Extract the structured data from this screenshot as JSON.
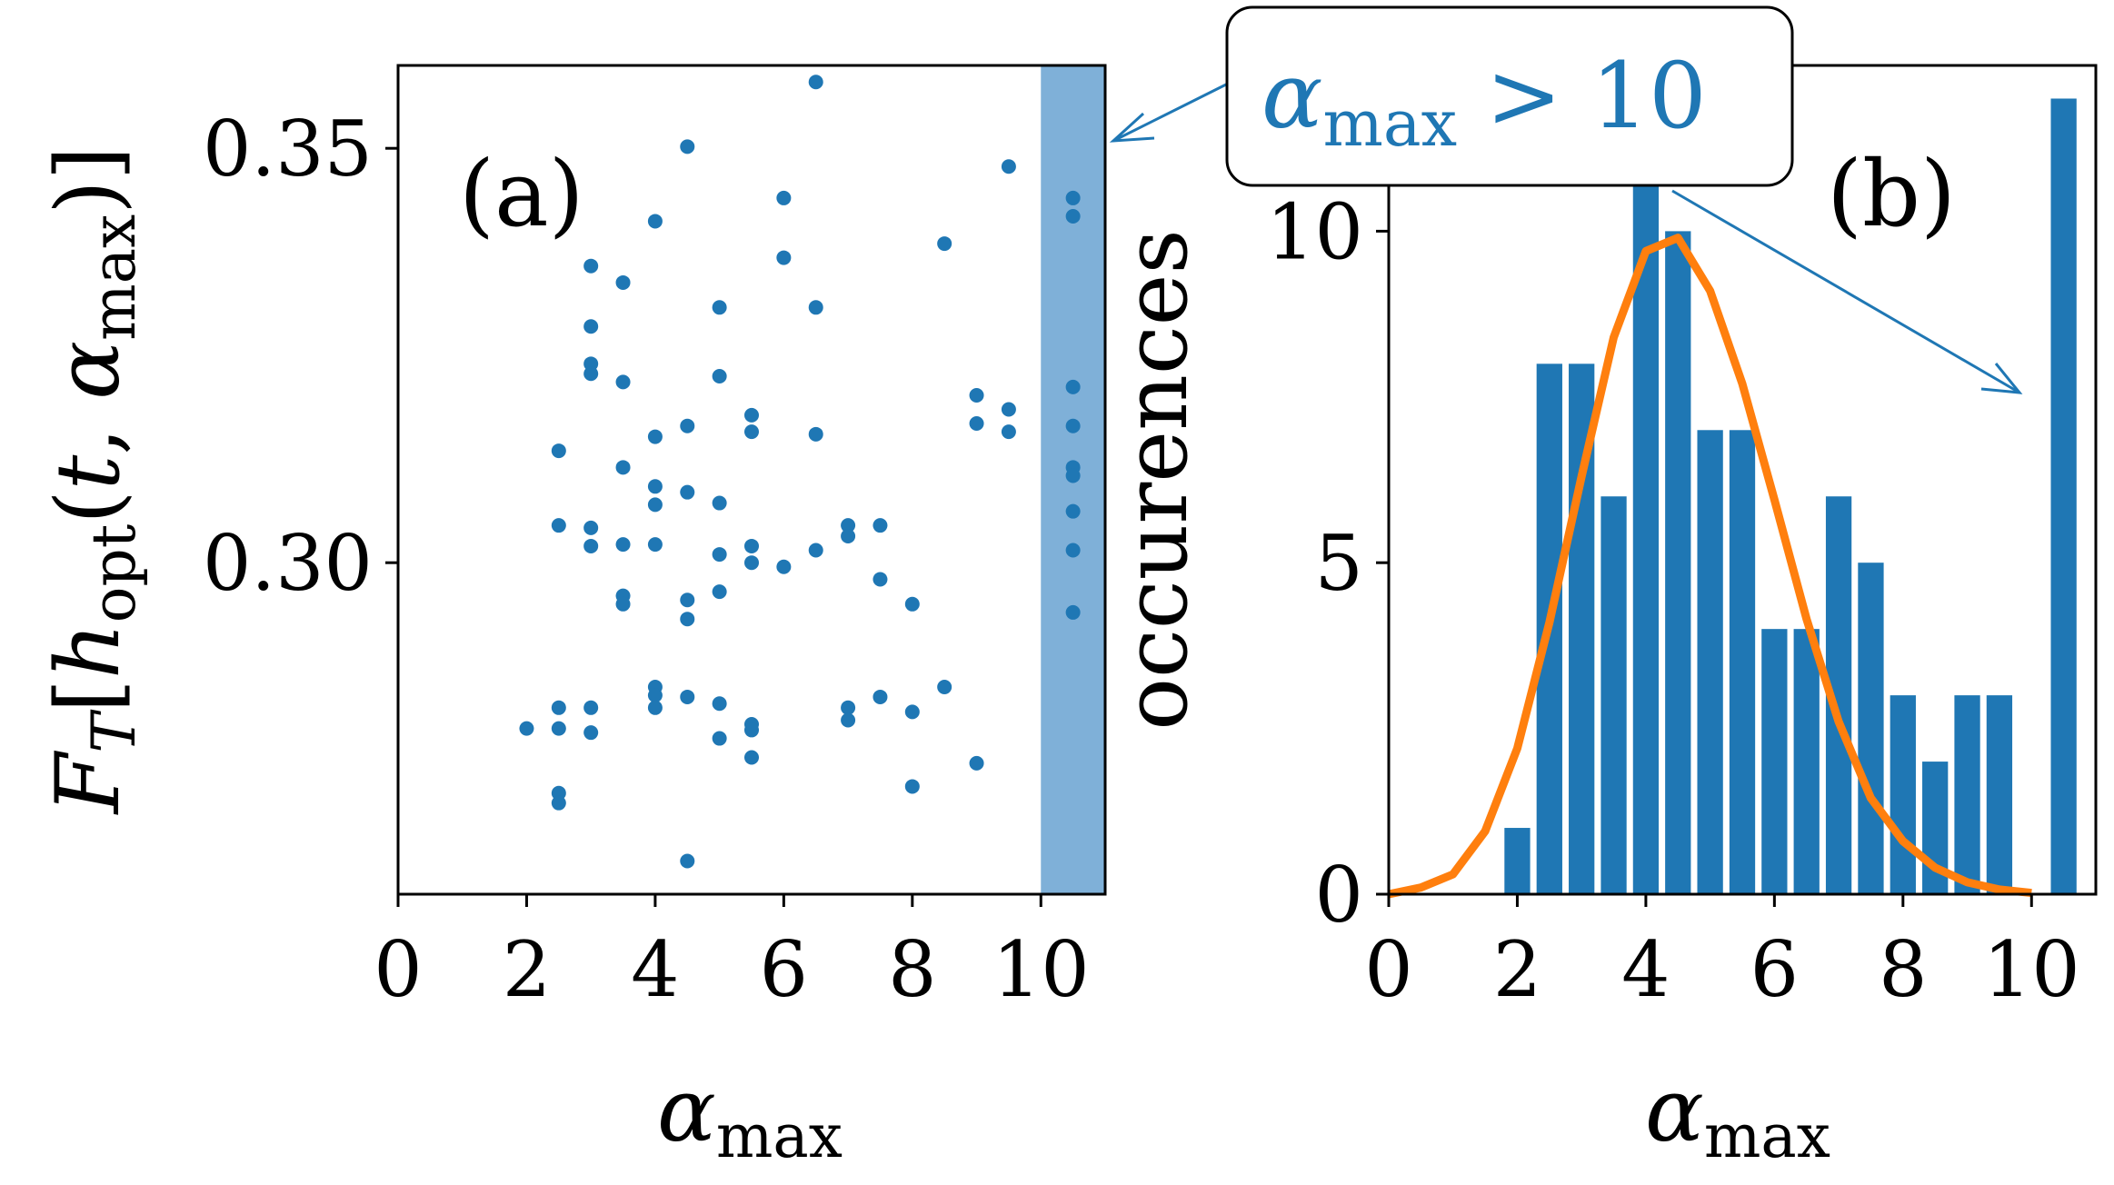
{
  "chart_data": [
    {
      "type": "scatter",
      "panel_label": "(a)",
      "xlabel": "α_max",
      "ylabel": "F_T[h_opt(t, α_max)]",
      "xlim": [
        0,
        11
      ],
      "ylim": [
        0.26,
        0.36
      ],
      "xticks": [
        0,
        2,
        4,
        6,
        8,
        10
      ],
      "xtick_labels": [
        "0",
        "2",
        "4",
        "6",
        "8",
        "10"
      ],
      "yticks": [
        0.3,
        0.35
      ],
      "ytick_labels": [
        "0.30",
        "0.35"
      ],
      "color": "#1f77b4",
      "highlight": {
        "x_from": 10,
        "x_to": 11,
        "color": "#7fb0d8"
      },
      "points": [
        [
          2.0,
          0.28
        ],
        [
          2.5,
          0.2825
        ],
        [
          2.5,
          0.28
        ],
        [
          2.5,
          0.2722
        ],
        [
          2.5,
          0.271
        ],
        [
          2.5,
          0.3135
        ],
        [
          2.5,
          0.3045
        ],
        [
          3.0,
          0.3358
        ],
        [
          3.0,
          0.3285
        ],
        [
          3.0,
          0.324
        ],
        [
          3.0,
          0.3228
        ],
        [
          3.0,
          0.3042
        ],
        [
          3.0,
          0.302
        ],
        [
          3.0,
          0.2825
        ],
        [
          3.0,
          0.2795
        ],
        [
          3.5,
          0.3338
        ],
        [
          3.5,
          0.3218
        ],
        [
          3.5,
          0.3115
        ],
        [
          3.5,
          0.3022
        ],
        [
          3.5,
          0.296
        ],
        [
          3.5,
          0.295
        ],
        [
          4.0,
          0.3412
        ],
        [
          4.0,
          0.3152
        ],
        [
          4.0,
          0.3092
        ],
        [
          4.0,
          0.307
        ],
        [
          4.0,
          0.3022
        ],
        [
          4.0,
          0.285
        ],
        [
          4.0,
          0.284
        ],
        [
          4.0,
          0.2825
        ],
        [
          4.5,
          0.3502
        ],
        [
          4.5,
          0.3165
        ],
        [
          4.5,
          0.3085
        ],
        [
          4.5,
          0.2955
        ],
        [
          4.5,
          0.2932
        ],
        [
          4.5,
          0.2838
        ],
        [
          4.5,
          0.264
        ],
        [
          5.0,
          0.3308
        ],
        [
          5.0,
          0.3225
        ],
        [
          5.0,
          0.3072
        ],
        [
          5.0,
          0.301
        ],
        [
          5.0,
          0.2965
        ],
        [
          5.0,
          0.283
        ],
        [
          5.0,
          0.2788
        ],
        [
          5.5,
          0.3178
        ],
        [
          5.5,
          0.3158
        ],
        [
          5.5,
          0.302
        ],
        [
          5.5,
          0.3
        ],
        [
          5.5,
          0.2805
        ],
        [
          5.5,
          0.2798
        ],
        [
          5.5,
          0.2765
        ],
        [
          6.0,
          0.344
        ],
        [
          6.0,
          0.3368
        ],
        [
          6.0,
          0.2995
        ],
        [
          6.5,
          0.358
        ],
        [
          6.5,
          0.3308
        ],
        [
          6.5,
          0.3155
        ],
        [
          6.5,
          0.3015
        ],
        [
          7.0,
          0.3045
        ],
        [
          7.0,
          0.3032
        ],
        [
          7.0,
          0.2825
        ],
        [
          7.0,
          0.281
        ],
        [
          7.5,
          0.3045
        ],
        [
          7.5,
          0.298
        ],
        [
          7.5,
          0.2838
        ],
        [
          8.0,
          0.295
        ],
        [
          8.0,
          0.282
        ],
        [
          8.0,
          0.273
        ],
        [
          8.5,
          0.3385
        ],
        [
          8.5,
          0.285
        ],
        [
          9.0,
          0.3202
        ],
        [
          9.0,
          0.3168
        ],
        [
          9.0,
          0.2758
        ],
        [
          9.5,
          0.3478
        ],
        [
          9.5,
          0.3185
        ],
        [
          9.5,
          0.3158
        ],
        [
          10.5,
          0.344
        ],
        [
          10.5,
          0.3418
        ],
        [
          10.5,
          0.3212
        ],
        [
          10.5,
          0.3165
        ],
        [
          10.5,
          0.3115
        ],
        [
          10.5,
          0.3105
        ],
        [
          10.5,
          0.3062
        ],
        [
          10.5,
          0.3015
        ],
        [
          10.5,
          0.294
        ]
      ]
    },
    {
      "type": "bar",
      "panel_label": "(b)",
      "xlabel": "α_max",
      "ylabel": "occurences",
      "xlim": [
        0,
        11
      ],
      "ylim": [
        0,
        12.5
      ],
      "xticks": [
        0,
        2,
        4,
        6,
        8,
        10
      ],
      "xtick_labels": [
        "0",
        "2",
        "4",
        "6",
        "8",
        "10"
      ],
      "yticks": [
        0,
        5,
        10
      ],
      "ytick_labels": [
        "0",
        "5",
        "10"
      ],
      "bar_color": "#1f77b4",
      "bar_width": 0.4,
      "bars": [
        [
          2.0,
          1
        ],
        [
          2.5,
          8
        ],
        [
          3.0,
          8
        ],
        [
          3.5,
          6
        ],
        [
          4.0,
          11
        ],
        [
          4.5,
          10
        ],
        [
          5.0,
          7
        ],
        [
          5.5,
          7
        ],
        [
          6.0,
          4
        ],
        [
          6.5,
          4
        ],
        [
          7.0,
          6
        ],
        [
          7.5,
          5
        ],
        [
          8.0,
          3
        ],
        [
          8.5,
          2
        ],
        [
          9.0,
          3
        ],
        [
          9.5,
          3
        ],
        [
          10.5,
          12
        ]
      ],
      "fit_color": "#ff7f0e",
      "fit_curve": [
        [
          0.0,
          0.0
        ],
        [
          0.5,
          0.1
        ],
        [
          1.0,
          0.3
        ],
        [
          1.5,
          0.95
        ],
        [
          2.0,
          2.2
        ],
        [
          2.5,
          4.1
        ],
        [
          3.0,
          6.3
        ],
        [
          3.5,
          8.4
        ],
        [
          4.0,
          9.7
        ],
        [
          4.5,
          9.9
        ],
        [
          5.0,
          9.1
        ],
        [
          5.5,
          7.7
        ],
        [
          6.0,
          5.95
        ],
        [
          6.5,
          4.15
        ],
        [
          7.0,
          2.6
        ],
        [
          7.5,
          1.45
        ],
        [
          8.0,
          0.8
        ],
        [
          8.5,
          0.4
        ],
        [
          9.0,
          0.18
        ],
        [
          9.5,
          0.07
        ],
        [
          10.0,
          0.02
        ]
      ]
    }
  ],
  "annotation": {
    "text_symbol": "α",
    "text_sub": "max",
    "text_rest": " > 10",
    "color": "#1f77b4"
  }
}
